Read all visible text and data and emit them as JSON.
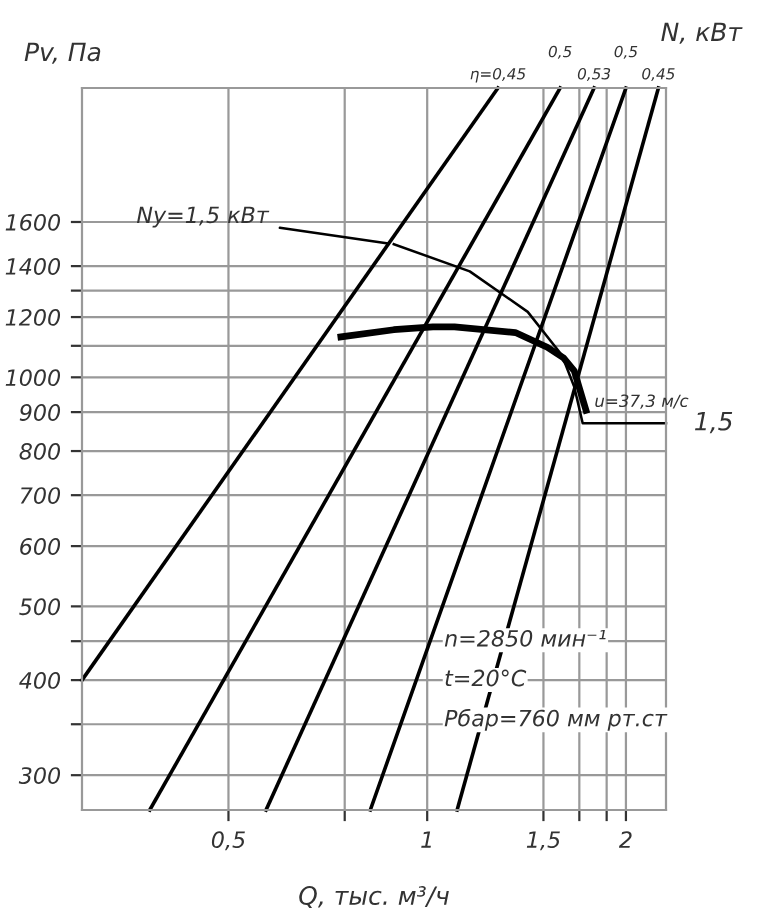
{
  "chart_data": {
    "type": "line",
    "xlabel": "Q, тыс. м³/ч",
    "ylabel": "Pv, Па",
    "y2label": "N, кВт",
    "log": "xy",
    "grid": true,
    "xlim": [
      0.3,
      2.3
    ],
    "ylim": [
      270,
      2400
    ],
    "xticks": [
      {
        "value": 0.5,
        "label": "0,5"
      },
      {
        "value": 0.75,
        "label": null
      },
      1,
      {
        "value": 1.5,
        "label": "1,5"
      },
      {
        "value": 1.7,
        "label": null
      },
      {
        "value": 1.87,
        "label": null
      },
      2
    ],
    "yticks": [
      300,
      {
        "value": 350,
        "label": null
      },
      400,
      {
        "value": 450,
        "label": null
      },
      500,
      600,
      700,
      800,
      900,
      1000,
      {
        "value": 1100,
        "label": null
      },
      1200,
      {
        "value": 1300,
        "label": null
      },
      1400,
      1600
    ],
    "series": [
      {
        "name": "η=0,45",
        "color": "#000000",
        "x": [
          0.3,
          1.28
        ],
        "values": [
          400,
          2400
        ]
      },
      {
        "name": "0,5",
        "color": "#000000",
        "x": [
          0.38,
          1.59
        ],
        "values": [
          270,
          2400
        ]
      },
      {
        "name": "0,53",
        "color": "#000000",
        "x": [
          0.57,
          1.79
        ],
        "values": [
          270,
          2400
        ]
      },
      {
        "name": "0,5",
        "color": "#000000",
        "x": [
          0.82,
          2.0
        ],
        "values": [
          270,
          2400
        ]
      },
      {
        "name": "0,45",
        "color": "#000000",
        "x": [
          1.11,
          2.24
        ],
        "values": [
          270,
          2400
        ]
      },
      {
        "color": "#000000",
        "x": [
          0.74,
          0.89,
          1.02,
          1.1,
          1.36,
          1.52,
          1.61,
          1.67,
          1.74
        ],
        "values": [
          1130,
          1155,
          1165,
          1165,
          1145,
          1095,
          1060,
          1020,
          905
        ]
      },
      {
        "color": "#000000",
        "x": [
          0.89,
          1.16,
          1.42,
          1.6,
          1.67,
          1.72,
          2.3
        ],
        "values": [
          1496,
          1378,
          1219,
          1069,
          972,
          870,
          870
        ]
      }
    ],
    "annotations": [
      {
        "text": "Ny=1,5 кВт",
        "x": 0.89,
        "y": 1496
      },
      {
        "text": "u=37,3 м/с",
        "x": 1.74,
        "y": 905
      },
      {
        "text": "1,5",
        "x": 2.3,
        "y": 870
      },
      "n=2850 мин⁻¹",
      "t=20°C",
      "Pбар=760 мм рт.ст"
    ]
  }
}
